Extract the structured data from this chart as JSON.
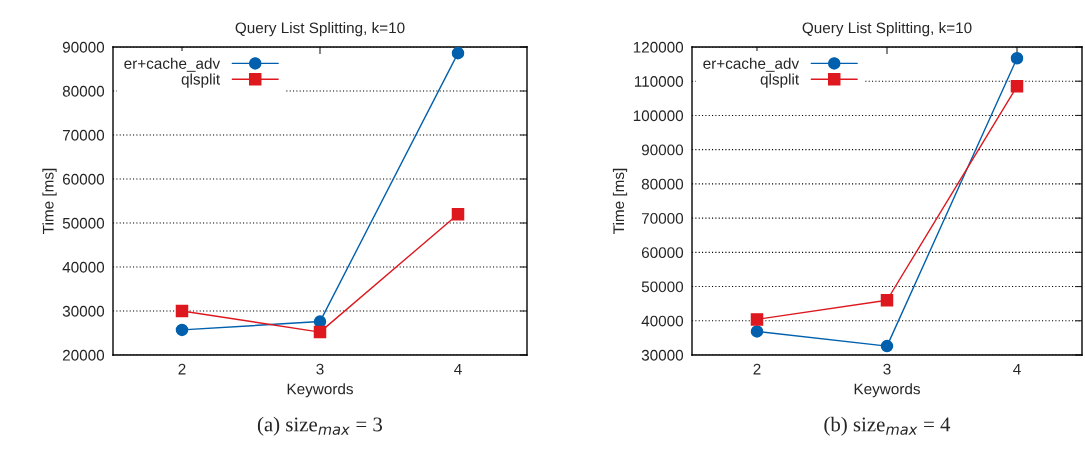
{
  "chart_data": [
    {
      "type": "line",
      "title": "Query List Splitting, k=10",
      "xlabel": "Keywords",
      "ylabel": "Time [ms]",
      "categories": [
        "2",
        "3",
        "4"
      ],
      "series": [
        {
          "name": "er+cache_adv",
          "color": "#0060ad",
          "marker": "circle",
          "values": [
            25700,
            27600,
            88600
          ]
        },
        {
          "name": "qlsplit",
          "color": "#dd181f",
          "marker": "square",
          "values": [
            30000,
            25200,
            52000
          ]
        }
      ],
      "ylim": [
        20000,
        90000
      ],
      "yticks": [
        20000,
        30000,
        40000,
        50000,
        60000,
        70000,
        80000,
        90000
      ],
      "grid": "y",
      "legend": "top left",
      "line_style": "solid",
      "annotations": [
        "(a) size$_{max}$ = 3"
      ]
    },
    {
      "type": "line",
      "title": "Query List Splitting, k=10",
      "xlabel": "Keywords",
      "ylabel": "Time [ms]",
      "categories": [
        "2",
        "3",
        "4"
      ],
      "series": [
        {
          "name": "er+cache_adv",
          "color": "#0060ad",
          "marker": "circle",
          "values": [
            36900,
            32600,
            116700
          ]
        },
        {
          "name": "qlsplit",
          "color": "#dd181f",
          "marker": "square",
          "values": [
            40400,
            46000,
            108500
          ]
        }
      ],
      "ylim": [
        30000,
        120000
      ],
      "yticks": [
        30000,
        40000,
        50000,
        60000,
        70000,
        80000,
        90000,
        100000,
        110000,
        120000
      ],
      "grid": "y",
      "legend": "top left",
      "line_style": "solid",
      "annotations": [
        "(b) size$_{max}$ = 4"
      ]
    }
  ]
}
